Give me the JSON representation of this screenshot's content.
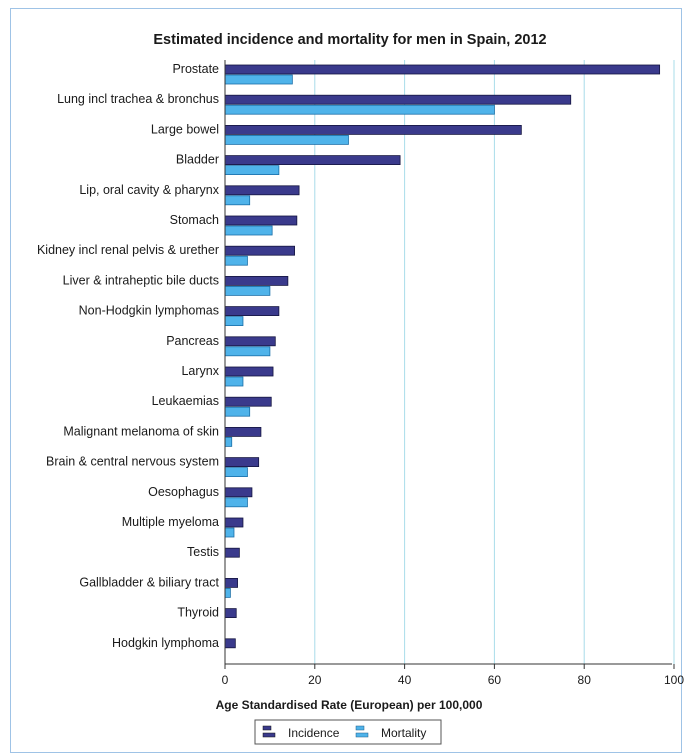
{
  "chart_data": {
    "type": "bar",
    "orientation": "horizontal",
    "title": "Estimated incidence and mortality for men in Spain, 2012",
    "xlabel": "Age Standardised Rate (European) per 100,000",
    "ylabel": "",
    "xlim": [
      0,
      100
    ],
    "xticks": [
      "0",
      "20",
      "40",
      "60",
      "80",
      "100"
    ],
    "grid": true,
    "legend_position": "bottom",
    "categories": [
      "Prostate",
      "Lung incl trachea & bronchus",
      "Large bowel",
      "Bladder",
      "Lip, oral cavity & pharynx",
      "Stomach",
      "Kidney incl renal pelvis & urether",
      "Liver & intraheptic bile ducts",
      "Non-Hodgkin lymphomas",
      "Pancreas",
      "Larynx",
      "Leukaemias",
      "Malignant melanoma of skin",
      "Brain & central nervous system",
      "Oesophagus",
      "Multiple myeloma",
      "Testis",
      "Gallbladder & biliary tract",
      "Thyroid",
      "Hodgkin lymphoma"
    ],
    "series": [
      {
        "name": "Incidence",
        "color": "#3a3a8c",
        "values": [
          96.8,
          77.0,
          66.0,
          39.0,
          16.5,
          16.0,
          15.5,
          14.0,
          12.0,
          11.2,
          10.7,
          10.3,
          8.0,
          7.5,
          6.0,
          4.0,
          3.2,
          2.8,
          2.5,
          2.3
        ]
      },
      {
        "name": "Mortality",
        "color": "#4fb3ea",
        "values": [
          15.0,
          60.0,
          27.5,
          12.0,
          5.5,
          10.5,
          5.0,
          10.0,
          4.0,
          10.0,
          4.0,
          5.5,
          1.5,
          5.0,
          5.0,
          2.0,
          0,
          1.2,
          0,
          0
        ]
      }
    ]
  }
}
